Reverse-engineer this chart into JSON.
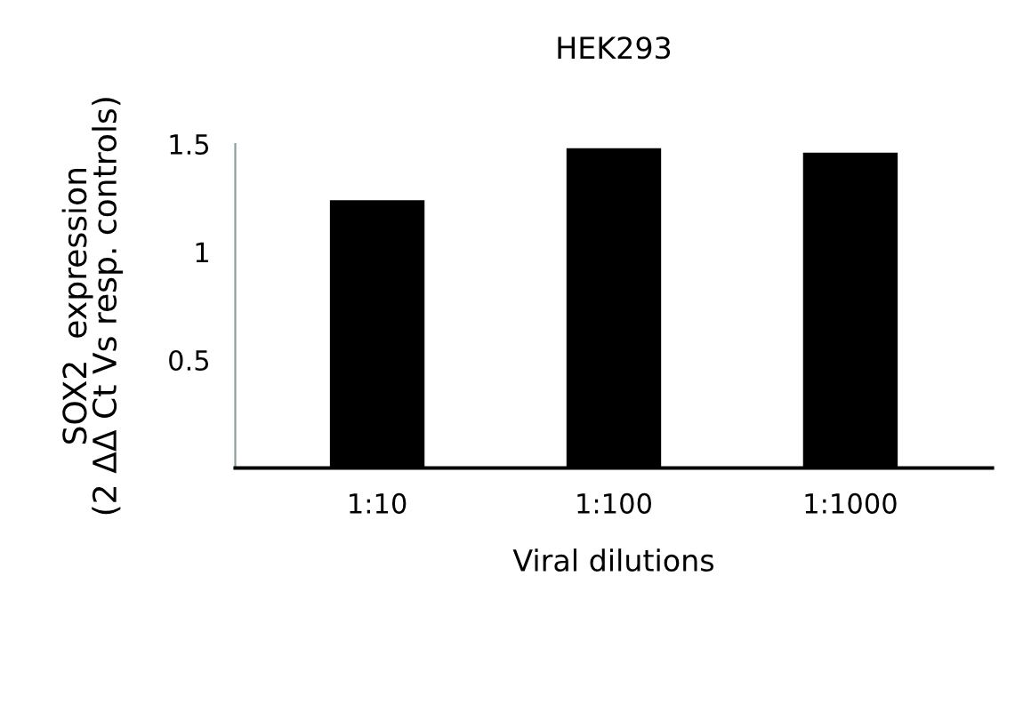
{
  "chart_data": {
    "type": "bar",
    "title": "HEK293",
    "xlabel": "Viral dilutions",
    "ylabel": "SOX2  expression\n(2 ΔΔ Ct Vs resp. controls)",
    "categories": [
      "1:10",
      "1:100",
      "1:1000"
    ],
    "values": [
      1.24,
      1.48,
      1.46
    ],
    "color": "#000000",
    "ylim": [
      0,
      1.5
    ],
    "yticks": [
      0.5,
      1,
      1.5
    ],
    "grid": false
  }
}
